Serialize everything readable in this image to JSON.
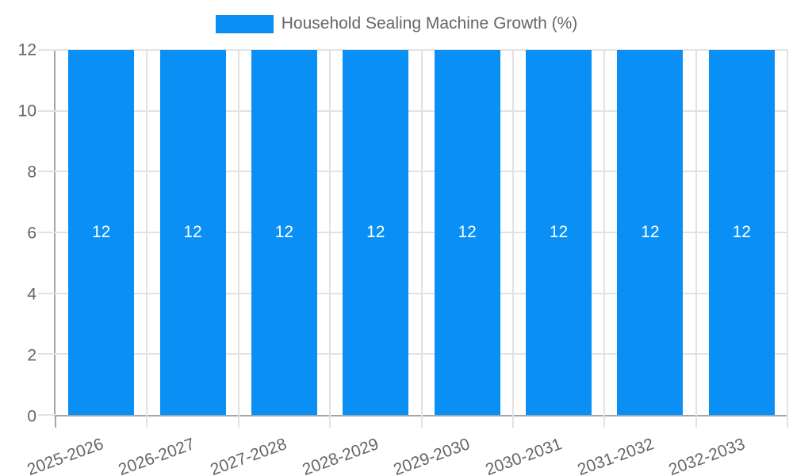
{
  "chart_data": {
    "type": "bar",
    "title": "Household Sealing Machine Growth (%)",
    "categories": [
      "2025-2026",
      "2026-2027",
      "2027-2028",
      "2028-2029",
      "2029-2030",
      "2030-2031",
      "2031-2032",
      "2032-2033"
    ],
    "values": [
      12,
      12,
      12,
      12,
      12,
      12,
      12,
      12
    ],
    "bar_labels": [
      "12",
      "12",
      "12",
      "12",
      "12",
      "12",
      "12",
      "12"
    ],
    "xlabel": "",
    "ylabel": "",
    "ylim": [
      0,
      12
    ],
    "y_ticks": [
      0,
      2,
      4,
      6,
      8,
      10,
      12
    ],
    "grid": true,
    "legend_position": "top-center",
    "x_label_rotation_deg": -20,
    "colors": {
      "bar": "#0a90f4",
      "bar_label": "#ffffff",
      "grid": "#e2e2e2",
      "axis": "#a6a6a6",
      "text": "#666666"
    }
  }
}
